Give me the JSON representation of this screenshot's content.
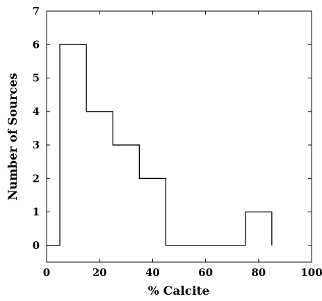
{
  "chart_data": {
    "type": "histogram",
    "xlabel": "% Calcite",
    "ylabel": "Number of Sources",
    "xlim": [
      0,
      100
    ],
    "ylim": [
      -0.5,
      7
    ],
    "x_ticks": [
      0,
      20,
      40,
      60,
      80,
      100
    ],
    "y_ticks": [
      0,
      1,
      2,
      3,
      4,
      5,
      6,
      7
    ],
    "bins": [
      {
        "x0": 5,
        "x1": 15,
        "count": 6
      },
      {
        "x0": 15,
        "x1": 25,
        "count": 4
      },
      {
        "x0": 25,
        "x1": 35,
        "count": 3
      },
      {
        "x0": 35,
        "x1": 45,
        "count": 2
      },
      {
        "x0": 45,
        "x1": 55,
        "count": 0
      },
      {
        "x0": 55,
        "x1": 65,
        "count": 0
      },
      {
        "x0": 65,
        "x1": 75,
        "count": 0
      },
      {
        "x0": 75,
        "x1": 85,
        "count": 1
      }
    ],
    "step_start": {
      "x": 0,
      "y": 0
    },
    "grid": false,
    "line_color": "#000000"
  }
}
